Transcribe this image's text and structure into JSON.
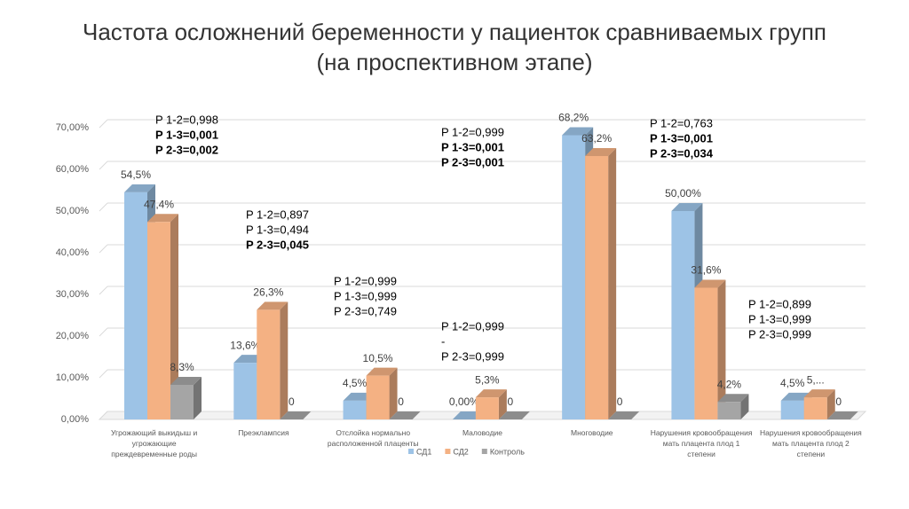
{
  "chart_data": {
    "type": "bar3d",
    "title": [
      "Частота осложнений беременности у пациенток сравниваемых групп",
      "(на проспективном этапе)"
    ],
    "categories": [
      "Угрожающий выкидыш и угрожающие преждевременные роды",
      "Преэклампсия",
      "Отслойка нормально расположенной плаценты",
      "Маловодие",
      "Многоводие",
      "Нарушения кровообращения мать плацента плод 1 степени",
      "Нарушения кровообращения мать плацента плод 2 степени"
    ],
    "series": [
      {
        "name": "СД1",
        "color": "#9dc3e6",
        "values": [
          54.5,
          13.6,
          4.5,
          0,
          68.2,
          50,
          4.5
        ],
        "value_labels": [
          "54,5%",
          "13,6%",
          "4,5%",
          "0,00%",
          "68,2%",
          "50,00%",
          "4,5%"
        ]
      },
      {
        "name": "СД2",
        "color": "#f4b183",
        "values": [
          47.4,
          26.3,
          10.5,
          5.3,
          63.2,
          31.6,
          5.3
        ],
        "value_labels": [
          "47,4%",
          "26,3%",
          "10,5%",
          "5,3%",
          "63,2%",
          "31,6%",
          "5,..."
        ]
      },
      {
        "name": "Контроль",
        "color": "#a5a5a5",
        "values": [
          8.3,
          0,
          0,
          0,
          0,
          4.2,
          0
        ],
        "value_labels": [
          "8,3%",
          "0",
          "0",
          "0",
          "0",
          "4,2%",
          "0"
        ]
      }
    ],
    "ylim": [
      0,
      70
    ],
    "yticks": [
      {
        "value": 0,
        "label": "0,00%"
      },
      {
        "value": 10,
        "label": "10,00%"
      },
      {
        "value": 20,
        "label": "20,00%"
      },
      {
        "value": 30,
        "label": "30,00%"
      },
      {
        "value": 40,
        "label": "40,00%"
      },
      {
        "value": 50,
        "label": "50,00%"
      },
      {
        "value": 60,
        "label": "60,00%"
      },
      {
        "value": 70,
        "label": "70,00%"
      }
    ],
    "grid": true,
    "legend": "bottom",
    "annotations": [
      {
        "lines": [
          {
            "text": "P 1-2=0,998",
            "bold": false
          },
          {
            "text": "P 1-3=0,001",
            "bold": true
          },
          {
            "text": "P 2-3=0,002",
            "bold": true
          }
        ]
      },
      {
        "lines": [
          {
            "text": "P 1-2=0,897",
            "bold": false
          },
          {
            "text": "P 1-3=0,494",
            "bold": false
          },
          {
            "text": "P 2-3=0,045",
            "bold": true
          }
        ]
      },
      {
        "lines": [
          {
            "text": "P 1-2=0,999",
            "bold": false
          },
          {
            "text": "P 1-3=0,999",
            "bold": false
          },
          {
            "text": "P 2-3=0,749",
            "bold": false
          }
        ]
      },
      {
        "lines": [
          {
            "text": "P 1-2=0,999",
            "bold": false
          },
          {
            "text": "P 1-3=0,001",
            "bold": true
          },
          {
            "text": "P 2-3=0,001",
            "bold": true
          }
        ]
      },
      {
        "lines": [
          {
            "text": "P 1-2=0,999",
            "bold": false
          },
          {
            "text": "-",
            "bold": false
          },
          {
            "text": "P 2-3=0,999",
            "bold": false
          }
        ]
      },
      {
        "lines": [
          {
            "text": "P 1-2=0,763",
            "bold": false
          },
          {
            "text": "P 1-3=0,001",
            "bold": true
          },
          {
            "text": "P 2-3=0,034",
            "bold": true
          }
        ]
      },
      {
        "lines": [
          {
            "text": "P 1-2=0,899",
            "bold": false
          },
          {
            "text": "P 1-3=0,999",
            "bold": false
          },
          {
            "text": "P 2-3=0,999",
            "bold": false
          }
        ]
      }
    ]
  }
}
